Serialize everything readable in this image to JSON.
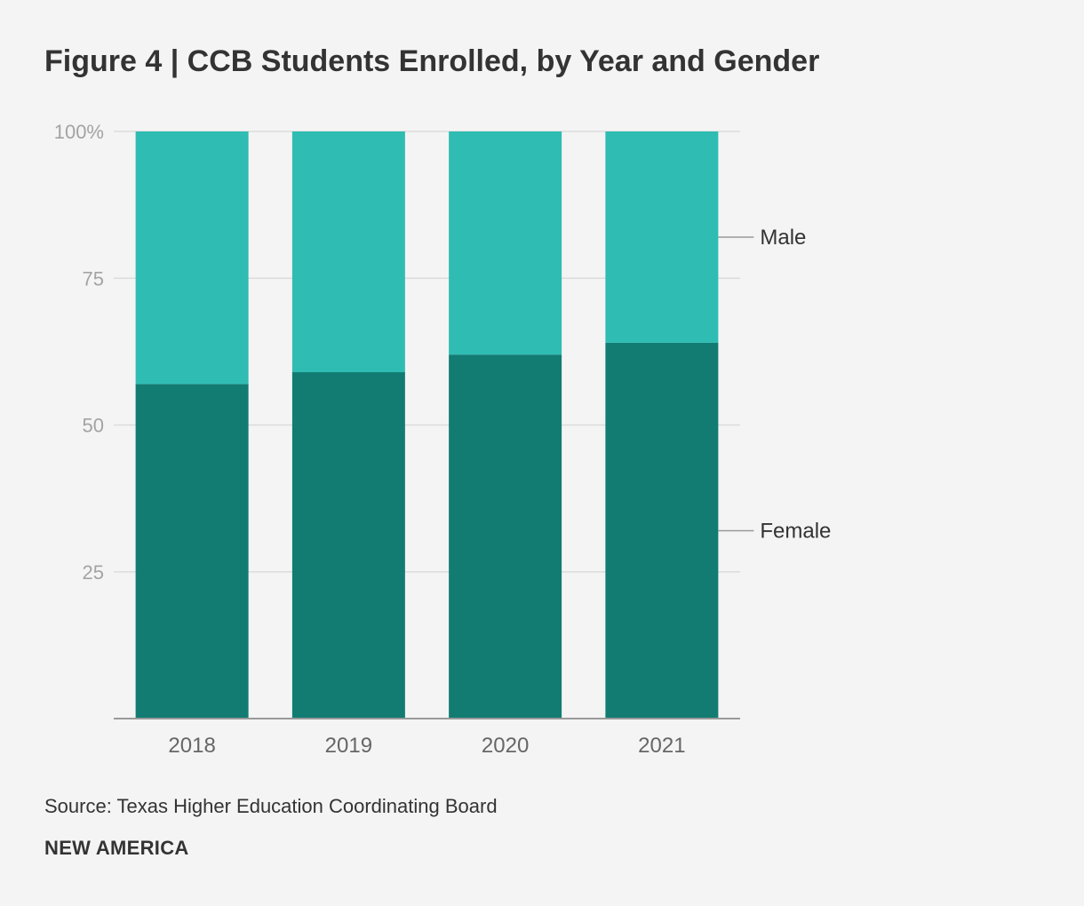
{
  "chart_data": {
    "type": "bar",
    "stacked": true,
    "title": "Figure 4 | CCB Students Enrolled, by Year and Gender",
    "categories": [
      "2018",
      "2019",
      "2020",
      "2021"
    ],
    "series": [
      {
        "name": "Female",
        "color": "#127c73",
        "values": [
          57,
          59,
          62,
          64
        ]
      },
      {
        "name": "Male",
        "color": "#2fbcb3",
        "values": [
          43,
          41,
          38,
          36
        ]
      }
    ],
    "ylim": [
      0,
      100
    ],
    "yticks": [
      {
        "value": 25,
        "label": "25"
      },
      {
        "value": 50,
        "label": "50"
      },
      {
        "value": 75,
        "label": "75"
      },
      {
        "value": 100,
        "label": "100%"
      }
    ],
    "grid": true,
    "legend": "right, inline labels",
    "xlabel": "",
    "ylabel": ""
  },
  "source": "Source: Texas Higher Education Coordinating Board",
  "brand": "NEW AMERICA"
}
